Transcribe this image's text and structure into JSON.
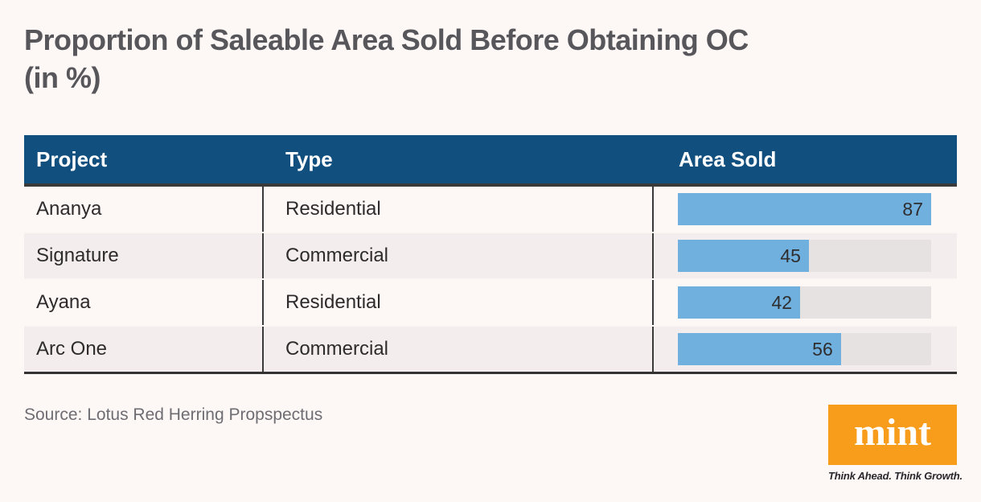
{
  "page": {
    "title_line1": "Proportion of Saleable Area Sold Before Obtaining OC",
    "title_line2": "(in %)"
  },
  "table": {
    "columns": [
      "Project",
      "Type",
      "Area Sold"
    ],
    "rows": [
      {
        "project": "Ananya",
        "type": "Residential",
        "area_sold": 87
      },
      {
        "project": "Signature",
        "type": "Commercial",
        "area_sold": 45
      },
      {
        "project": "Ayana",
        "type": "Residential",
        "area_sold": 42
      },
      {
        "project": "Arc One",
        "type": "Commercial",
        "area_sold": 56
      }
    ]
  },
  "chart_data": {
    "type": "bar",
    "orientation": "horizontal",
    "title": "Proportion of Saleable Area Sold Before Obtaining OC (in %)",
    "categories": [
      "Ananya",
      "Signature",
      "Ayana",
      "Arc One"
    ],
    "category_types": [
      "Residential",
      "Commercial",
      "Residential",
      "Commercial"
    ],
    "series": [
      {
        "name": "Area Sold",
        "values": [
          87,
          45,
          42,
          56
        ]
      }
    ],
    "unit": "%",
    "bar_scale_max": 87,
    "data_labels": "inside-end",
    "grid": false,
    "legend": false
  },
  "footer": {
    "source": "Source: Lotus Red Herring Propspectus",
    "brand_wordmark": "mint",
    "brand_tagline": "Think Ahead. Think Growth."
  },
  "colors": {
    "page_background": "#fdf7f6",
    "header_background": "#114f7e",
    "bar_fill": "#6fb0df",
    "bar_track": "#e6e2e1",
    "row_alternate": "#f3eeed",
    "brand_orange": "#f89c1c",
    "title_text": "#57565b",
    "dark_border": "#3a3a3a"
  }
}
